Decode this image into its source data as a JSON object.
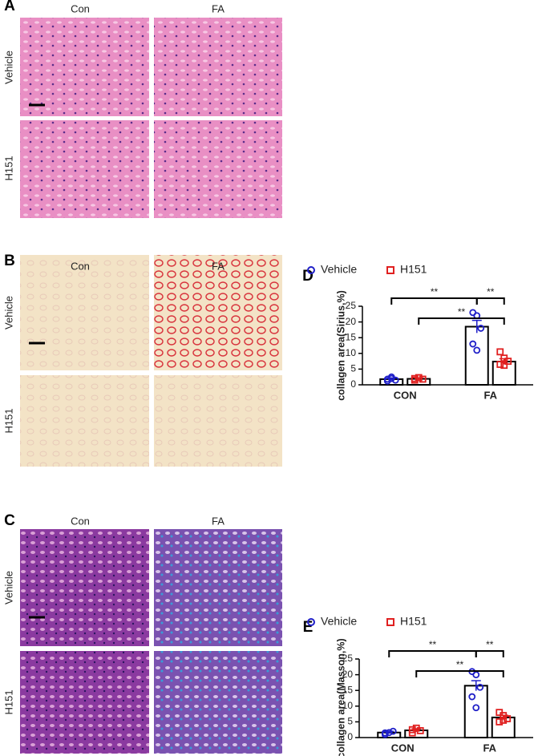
{
  "panels": [
    {
      "label": "A",
      "columns": [
        "Con",
        "FA"
      ],
      "rows": [
        "Vehicle",
        "H151"
      ]
    },
    {
      "label": "B",
      "columns": [
        "Con",
        "FA"
      ],
      "rows": [
        "Vehicle",
        "H151"
      ]
    },
    {
      "label": "C",
      "columns": [
        "Con",
        "FA"
      ],
      "rows": [
        "Vehicle",
        "H151"
      ]
    }
  ],
  "chart_data": [
    {
      "type": "bar",
      "label": "D",
      "y_label": "collagen area(Sirius,%)",
      "categories": [
        "CON",
        "FA"
      ],
      "ylim": [
        0,
        25
      ],
      "yticks": [
        0,
        5,
        10,
        15,
        20,
        25
      ],
      "annotations": [
        "**",
        "**",
        "**"
      ],
      "series": [
        {
          "name": "Vehicle",
          "color": "#1f1fc8",
          "marker": "circle",
          "values": [
            1.8,
            18.5
          ],
          "errors": [
            0.4,
            2.0
          ],
          "points": [
            [
              1.2,
              2.5,
              1.5,
              1.8,
              2.0
            ],
            [
              23,
              22,
              18,
              13,
              11
            ]
          ]
        },
        {
          "name": "H151",
          "color": "#e02020",
          "marker": "square",
          "values": [
            1.9,
            7.4
          ],
          "errors": [
            0.3,
            0.9
          ],
          "points": [
            [
              1.5,
              2.3,
              1.8,
              2.0
            ],
            [
              10.5,
              8.5,
              7.5,
              6.5,
              6.2
            ]
          ]
        }
      ]
    },
    {
      "type": "bar",
      "label": "E",
      "y_label": "collagen area(Masson,%)",
      "categories": [
        "CON",
        "FA"
      ],
      "ylim": [
        0,
        25
      ],
      "yticks": [
        0,
        5,
        10,
        15,
        20,
        25
      ],
      "annotations": [
        "**",
        "**",
        "**"
      ],
      "series": [
        {
          "name": "Vehicle",
          "color": "#1f1fc8",
          "marker": "circle",
          "values": [
            1.6,
            16.5
          ],
          "errors": [
            0.4,
            1.6
          ],
          "points": [
            [
              1.0,
              1.6,
              2.0,
              1.5
            ],
            [
              21,
              20,
              16,
              13,
              9.5
            ]
          ]
        },
        {
          "name": "H151",
          "color": "#e02020",
          "marker": "square",
          "values": [
            2.3,
            6.4
          ],
          "errors": [
            0.5,
            0.7
          ],
          "points": [
            [
              1.5,
              3.0,
              2.2,
              2.5
            ],
            [
              8,
              7,
              6,
              5,
              5.5
            ]
          ]
        }
      ]
    }
  ]
}
